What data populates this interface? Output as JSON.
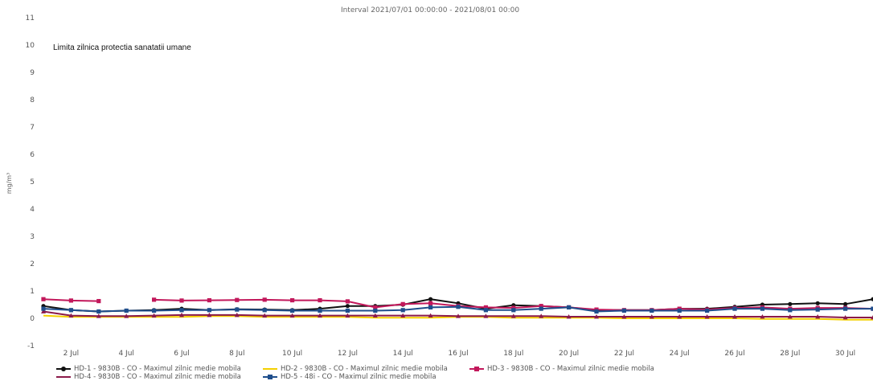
{
  "chart_data": {
    "type": "line",
    "title": "Interval 2021/07/01 00:00:00 - 2021/08/01 00:00",
    "annotation": "Limita zilnica protectia sanatatii umane",
    "ylabel": "mg/m³",
    "ylim": [
      -1,
      11
    ],
    "yticks": [
      "11",
      "10",
      "9",
      "8",
      "7",
      "6",
      "5",
      "4",
      "3",
      "2",
      "1",
      "0",
      "-1"
    ],
    "xlim": [
      1,
      31
    ],
    "xticks": [
      {
        "x": 2,
        "label": "2 Jul"
      },
      {
        "x": 4,
        "label": "4 Jul"
      },
      {
        "x": 6,
        "label": "6 Jul"
      },
      {
        "x": 8,
        "label": "8 Jul"
      },
      {
        "x": 10,
        "label": "10 Jul"
      },
      {
        "x": 12,
        "label": "12 Jul"
      },
      {
        "x": 14,
        "label": "14 Jul"
      },
      {
        "x": 16,
        "label": "16 Jul"
      },
      {
        "x": 18,
        "label": "18 Jul"
      },
      {
        "x": 20,
        "label": "20 Jul"
      },
      {
        "x": 22,
        "label": "22 Jul"
      },
      {
        "x": 24,
        "label": "24 Jul"
      },
      {
        "x": 26,
        "label": "26 Jul"
      },
      {
        "x": 28,
        "label": "28 Jul"
      },
      {
        "x": 30,
        "label": "30 Jul"
      }
    ],
    "grid": false,
    "legend_position": "bottom",
    "x": [
      1,
      2,
      3,
      4,
      5,
      6,
      7,
      8,
      9,
      10,
      11,
      12,
      13,
      14,
      15,
      16,
      17,
      18,
      19,
      20,
      21,
      22,
      23,
      24,
      25,
      26,
      27,
      28,
      29,
      30,
      31
    ],
    "series": [
      {
        "name": "HD-1 - 9830B - CO - Maximul zilnic medie mobila",
        "color": "#111111",
        "marker": "circle",
        "values": [
          0.45,
          0.3,
          0.25,
          0.28,
          0.3,
          0.35,
          0.3,
          0.33,
          0.32,
          0.3,
          0.35,
          0.45,
          0.45,
          0.5,
          0.7,
          0.55,
          0.35,
          0.48,
          0.45,
          0.4,
          0.3,
          0.3,
          0.3,
          0.35,
          0.35,
          0.42,
          0.5,
          0.52,
          0.55,
          0.52,
          0.7
        ]
      },
      {
        "name": "HD-2 - 9830B - CO - Maximul zilnic medie mobila",
        "color": "#f4d000",
        "marker": "none",
        "values": [
          0.1,
          0.05,
          0.05,
          0.05,
          0.05,
          0.05,
          0.08,
          0.08,
          0.05,
          0.05,
          0.05,
          0.05,
          0.02,
          0.02,
          0.02,
          0.05,
          0.05,
          0.02,
          0.02,
          0.02,
          0.02,
          0.0,
          0.0,
          0.0,
          0.0,
          0.0,
          -0.02,
          -0.02,
          -0.02,
          -0.05,
          -0.05
        ]
      },
      {
        "name": "HD-3 - 9830B - CO - Maximul zilnic medie mobila",
        "color": "#c2185b",
        "marker": "square",
        "values": [
          0.7,
          0.65,
          0.63,
          null,
          0.68,
          0.65,
          0.66,
          0.67,
          0.68,
          0.66,
          0.66,
          0.62,
          0.4,
          0.52,
          0.55,
          0.45,
          0.4,
          0.38,
          0.45,
          0.4,
          0.32,
          0.3,
          0.3,
          0.35,
          0.32,
          0.38,
          0.4,
          0.35,
          0.38,
          0.38,
          0.35
        ]
      },
      {
        "name": "HD-4 - 9830B - CO - Maximul zilnic medie mobila",
        "color": "#8b1a4a",
        "marker": "triangle",
        "values": [
          0.25,
          0.1,
          0.08,
          0.08,
          0.1,
          0.12,
          0.12,
          0.12,
          0.1,
          0.1,
          0.1,
          0.1,
          0.1,
          0.1,
          0.1,
          0.08,
          0.08,
          0.08,
          0.08,
          0.06,
          0.06,
          0.06,
          0.06,
          0.06,
          0.06,
          0.06,
          0.06,
          0.06,
          0.06,
          0.03,
          0.03
        ]
      },
      {
        "name": "HD-5 - 48i - CO - Maximul zilnic medie mobila",
        "color": "#1f4e8c",
        "marker": "square",
        "values": [
          0.35,
          0.3,
          0.25,
          0.28,
          0.28,
          0.3,
          0.3,
          0.32,
          0.3,
          0.28,
          0.28,
          0.28,
          0.28,
          0.3,
          0.4,
          0.42,
          0.3,
          0.3,
          0.35,
          0.4,
          0.25,
          0.28,
          0.28,
          0.28,
          0.28,
          0.35,
          0.35,
          0.3,
          0.32,
          0.35,
          0.35
        ]
      }
    ]
  }
}
